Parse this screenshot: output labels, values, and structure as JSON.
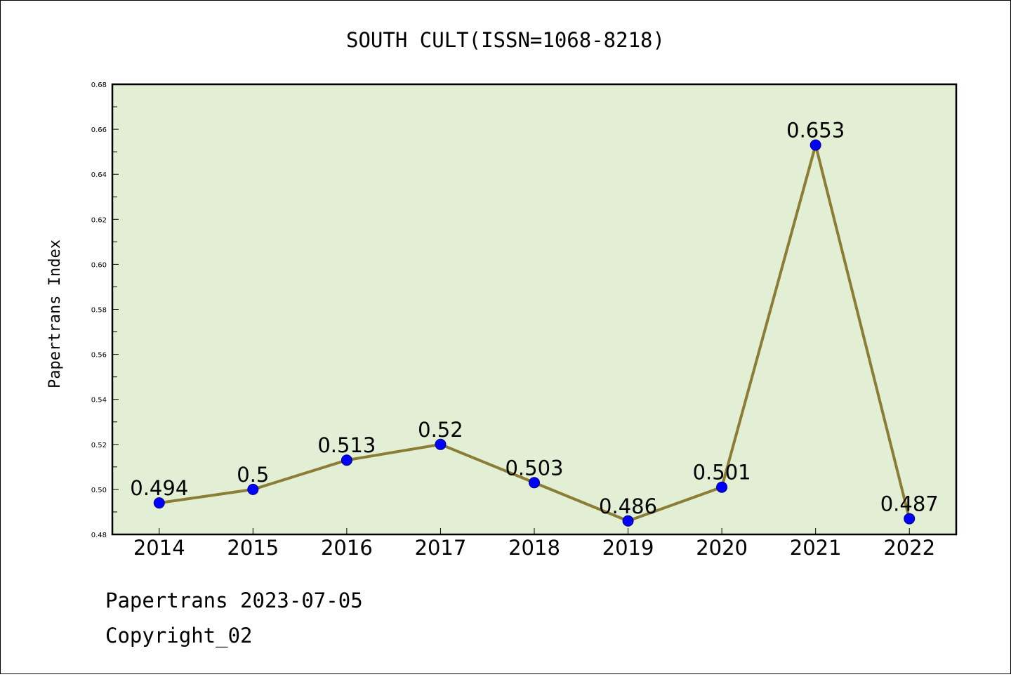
{
  "chart_data": {
    "type": "line",
    "title": "SOUTH CULT(ISSN=1068-8218)",
    "xlabel": "",
    "ylabel": "Papertrans Index",
    "categories": [
      "2014",
      "2015",
      "2016",
      "2017",
      "2018",
      "2019",
      "2020",
      "2021",
      "2022"
    ],
    "series": [
      {
        "values": [
          0.494,
          0.5,
          0.513,
          0.52,
          0.503,
          0.486,
          0.501,
          0.653,
          0.487
        ],
        "labels": [
          "0.494",
          "0.5",
          "0.513",
          "0.52",
          "0.503",
          "0.486",
          "0.501",
          "0.653",
          "0.487"
        ]
      }
    ],
    "ylim": [
      0.48,
      0.68
    ],
    "yticks": [
      "0.48",
      "0.50",
      "0.52",
      "0.54",
      "0.56",
      "0.58",
      "0.60",
      "0.62",
      "0.64",
      "0.66",
      "0.68"
    ],
    "grid": false,
    "colors": {
      "plot_background": "#e2efd4",
      "line": "#8b7d35",
      "marker": "#0000ff",
      "marker_edge": "#00007f"
    }
  },
  "footer": {
    "line1": "Papertrans 2023-07-05",
    "line2": "Copyright_02"
  }
}
